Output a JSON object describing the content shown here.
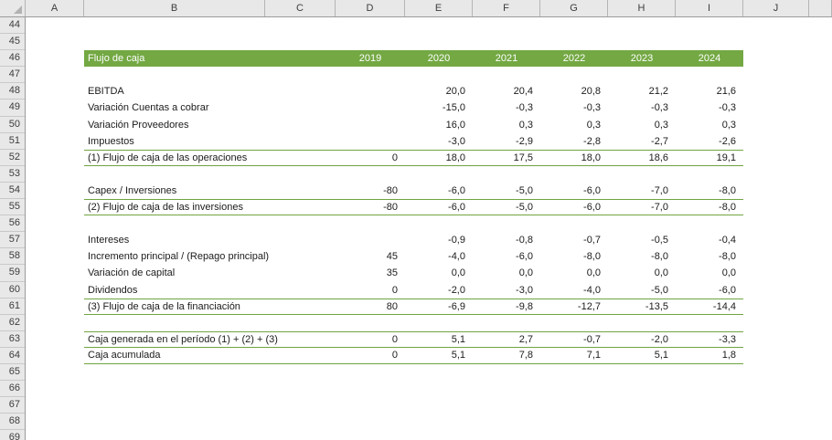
{
  "colors": {
    "header_fill": "#73A843",
    "sum_border": "#6FA441",
    "chrome_bg": "#E8E8E8",
    "chrome_border": "#B5B5B5",
    "chrome_edge": "#9B9B9B",
    "chrome_text": "#3C3C3C",
    "cell_text": "#1B1B1B",
    "band_text": "#FFFFFF"
  },
  "column_headers": [
    "A",
    "B",
    "C",
    "D",
    "E",
    "F",
    "G",
    "H",
    "I",
    "J",
    ""
  ],
  "row_numbers": [
    "44",
    "45",
    "46",
    "47",
    "48",
    "49",
    "50",
    "51",
    "52",
    "53",
    "54",
    "55",
    "56",
    "57",
    "58",
    "59",
    "60",
    "61",
    "62",
    "63",
    "64",
    "65",
    "66",
    "67",
    "68",
    "69"
  ],
  "table": {
    "title": "Flujo de caja",
    "header_row": 46,
    "years": [
      "2019",
      "2020",
      "2021",
      "2022",
      "2023",
      "2024"
    ],
    "rows": [
      {
        "row": 48,
        "label": "EBITDA",
        "kind": "item",
        "values": [
          "",
          "20,0",
          "20,4",
          "20,8",
          "21,2",
          "21,6"
        ]
      },
      {
        "row": 49,
        "label": "Variación Cuentas a cobrar",
        "kind": "item",
        "values": [
          "",
          "-15,0",
          "-0,3",
          "-0,3",
          "-0,3",
          "-0,3"
        ]
      },
      {
        "row": 50,
        "label": "Variación Proveedores",
        "kind": "item",
        "values": [
          "",
          "16,0",
          "0,3",
          "0,3",
          "0,3",
          "0,3"
        ]
      },
      {
        "row": 51,
        "label": "Impuestos",
        "kind": "item",
        "values": [
          "",
          "-3,0",
          "-2,9",
          "-2,8",
          "-2,7",
          "-2,6"
        ]
      },
      {
        "row": 52,
        "label": "(1) Flujo de caja de las operaciones",
        "kind": "sum",
        "values": [
          "0",
          "18,0",
          "17,5",
          "18,0",
          "18,6",
          "19,1"
        ]
      },
      {
        "row": 54,
        "label": "Capex / Inversiones",
        "kind": "item",
        "values": [
          "-80",
          "-6,0",
          "-5,0",
          "-6,0",
          "-7,0",
          "-8,0"
        ]
      },
      {
        "row": 55,
        "label": "(2) Flujo de caja de las inversiones",
        "kind": "sum",
        "values": [
          "-80",
          "-6,0",
          "-5,0",
          "-6,0",
          "-7,0",
          "-8,0"
        ]
      },
      {
        "row": 57,
        "label": "Intereses",
        "kind": "item",
        "values": [
          "",
          "-0,9",
          "-0,8",
          "-0,7",
          "-0,5",
          "-0,4"
        ]
      },
      {
        "row": 58,
        "label": "Incremento principal / (Repago principal)",
        "kind": "item",
        "values": [
          "45",
          "-4,0",
          "-6,0",
          "-8,0",
          "-8,0",
          "-8,0"
        ]
      },
      {
        "row": 59,
        "label": "Variación de capital",
        "kind": "item",
        "values": [
          "35",
          "0,0",
          "0,0",
          "0,0",
          "0,0",
          "0,0"
        ]
      },
      {
        "row": 60,
        "label": "Dividendos",
        "kind": "item",
        "values": [
          "0",
          "-2,0",
          "-3,0",
          "-4,0",
          "-5,0",
          "-6,0"
        ]
      },
      {
        "row": 61,
        "label": "(3) Flujo de caja de la financiación",
        "kind": "sum",
        "values": [
          "80",
          "-6,9",
          "-9,8",
          "-12,7",
          "-13,5",
          "-14,4"
        ]
      },
      {
        "row": 63,
        "label": "Caja generada en el período (1) + (2) + (3)",
        "kind": "sum",
        "values": [
          "0",
          "5,1",
          "2,7",
          "-0,7",
          "-2,0",
          "-3,3"
        ]
      },
      {
        "row": 64,
        "label": "Caja acumulada",
        "kind": "sum",
        "values": [
          "0",
          "5,1",
          "7,8",
          "7,1",
          "5,1",
          "1,8"
        ]
      }
    ]
  }
}
